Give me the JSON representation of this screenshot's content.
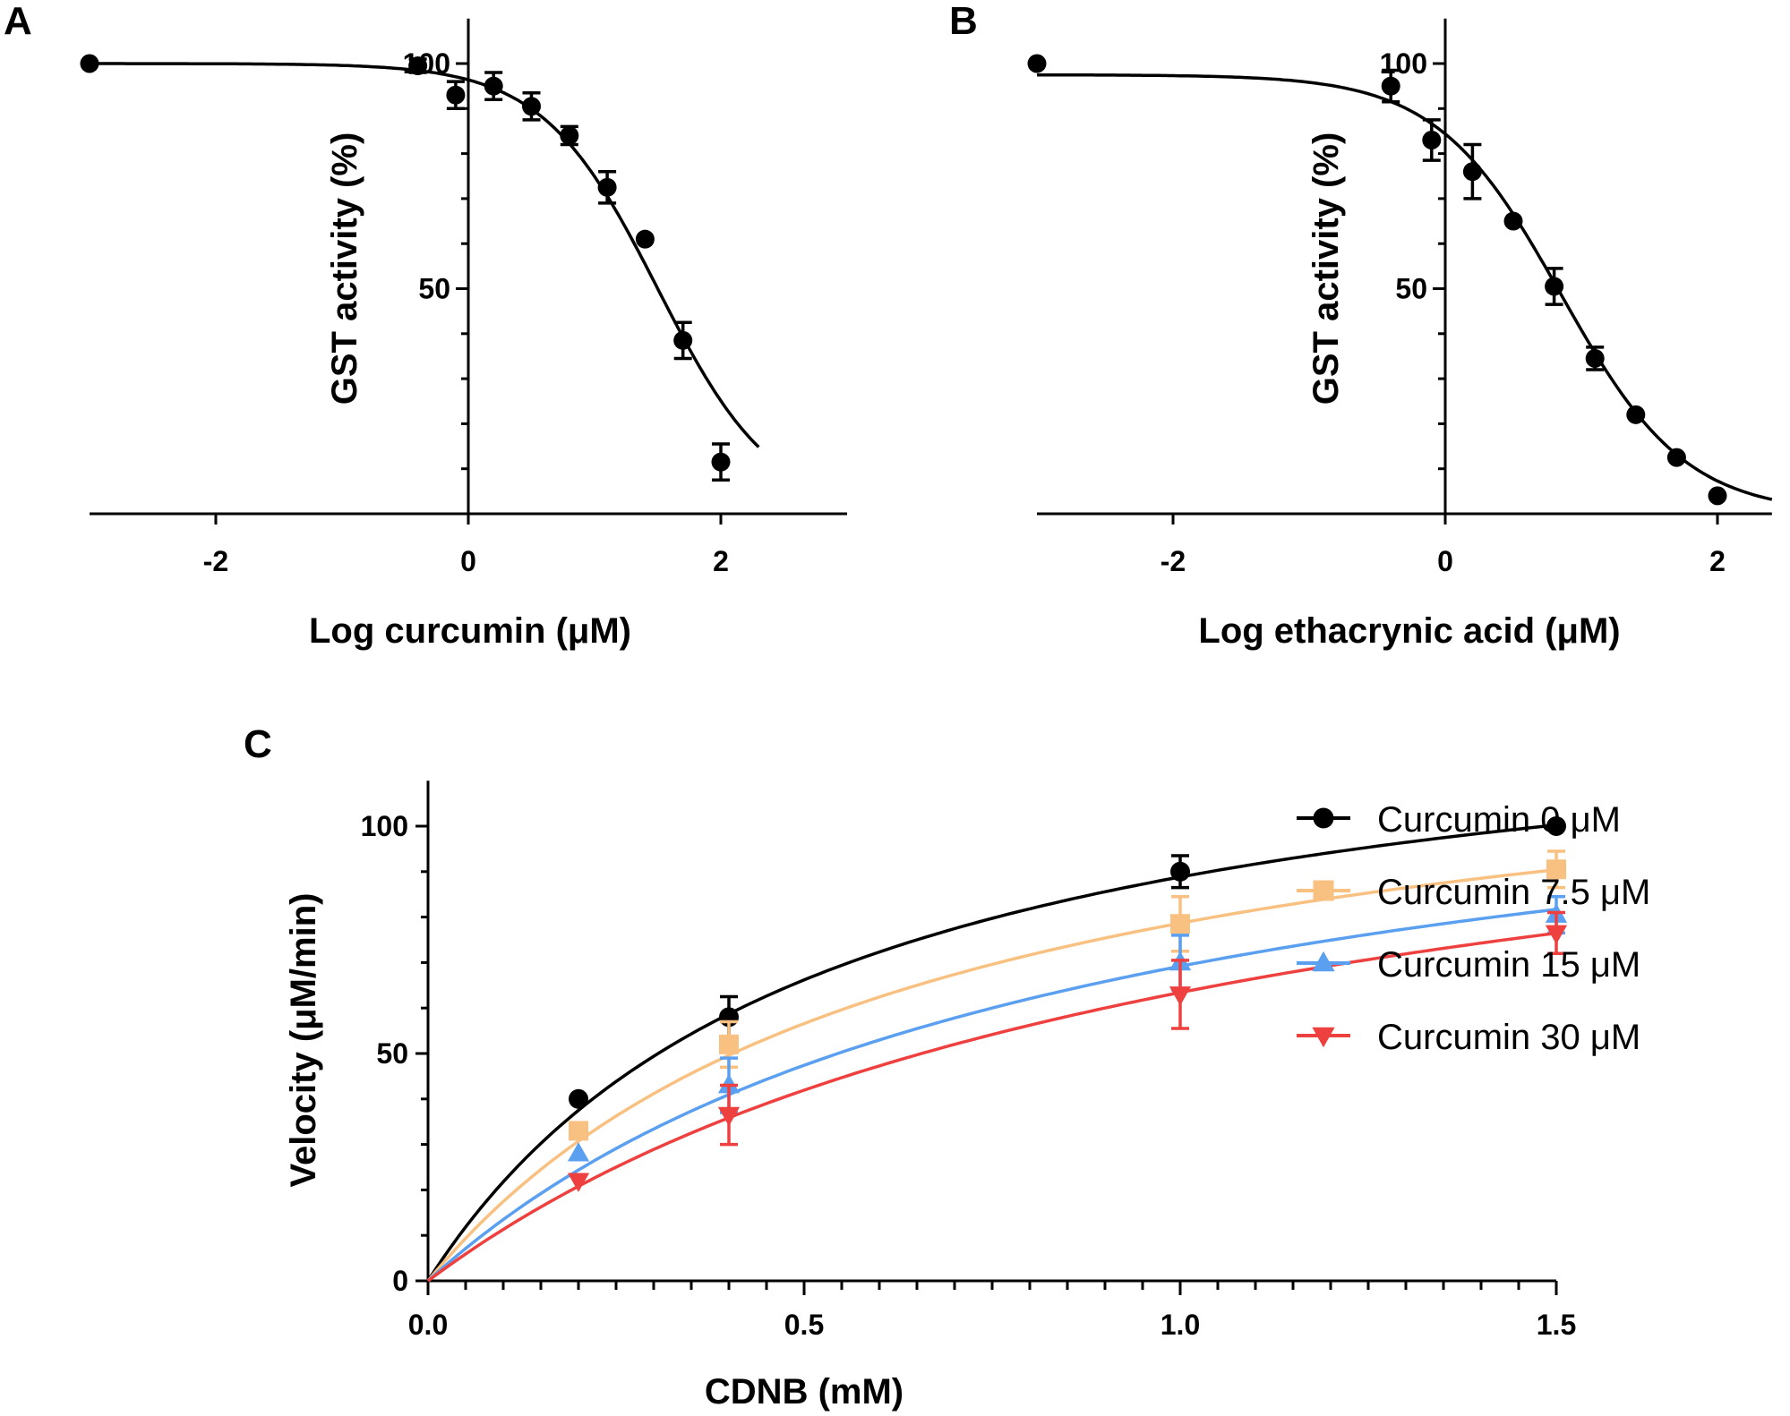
{
  "chart_data": [
    {
      "panel": "A",
      "type": "scatter",
      "xlabel": "Log curcumin (μM)",
      "ylabel": "GST activity (%)",
      "xlim": [
        -3,
        3
      ],
      "ylim": [
        0,
        110
      ],
      "x_ticks": [
        -2,
        0,
        2
      ],
      "x_tick_labels": [
        "-2",
        "0",
        "2"
      ],
      "y_ticks": [
        50,
        100
      ],
      "y_tick_labels": [
        "50",
        "100"
      ],
      "points": [
        {
          "x": -3.0,
          "y": 100,
          "err": 0
        },
        {
          "x": -0.4,
          "y": 99.5,
          "err": 1.5
        },
        {
          "x": -0.1,
          "y": 93,
          "err": 3
        },
        {
          "x": 0.2,
          "y": 95,
          "err": 3
        },
        {
          "x": 0.5,
          "y": 90.5,
          "err": 3
        },
        {
          "x": 0.8,
          "y": 84,
          "err": 2
        },
        {
          "x": 1.1,
          "y": 72.5,
          "err": 3.5
        },
        {
          "x": 1.4,
          "y": 61,
          "err": 0
        },
        {
          "x": 1.7,
          "y": 38.5,
          "err": 4
        },
        {
          "x": 2.0,
          "y": 11.5,
          "err": 4
        }
      ],
      "curve": {
        "top": 100,
        "bottom": 0,
        "log_ic50": 1.5,
        "hill": 0.95,
        "x_range": [
          -3,
          2.3
        ]
      }
    },
    {
      "panel": "B",
      "type": "scatter",
      "xlabel": "Log ethacrynic acid (μM)",
      "ylabel": "GST activity (%)",
      "xlim": [
        -3,
        2.4
      ],
      "ylim": [
        0,
        110
      ],
      "x_ticks": [
        -2,
        0,
        2
      ],
      "x_tick_labels": [
        "-2",
        "0",
        "2"
      ],
      "y_ticks": [
        50,
        100
      ],
      "y_tick_labels": [
        "50",
        "100"
      ],
      "points": [
        {
          "x": -3.0,
          "y": 100,
          "err": 0
        },
        {
          "x": -0.4,
          "y": 95,
          "err": 3.5
        },
        {
          "x": -0.1,
          "y": 83,
          "err": 4.5
        },
        {
          "x": 0.2,
          "y": 76,
          "err": 6
        },
        {
          "x": 0.5,
          "y": 65,
          "err": 0
        },
        {
          "x": 0.8,
          "y": 50.5,
          "err": 4
        },
        {
          "x": 1.1,
          "y": 34.5,
          "err": 2.5
        },
        {
          "x": 1.4,
          "y": 22,
          "err": 0
        },
        {
          "x": 1.7,
          "y": 12.5,
          "err": 0
        },
        {
          "x": 2.0,
          "y": 4,
          "err": 0
        }
      ],
      "curve": {
        "top": 97.5,
        "bottom": 0,
        "log_ic50": 0.85,
        "hill": 0.95,
        "x_range": [
          -3,
          2.4
        ]
      }
    },
    {
      "panel": "C",
      "type": "line",
      "xlabel": "CDNB (mM)",
      "ylabel": "Velocity (μM/min)",
      "xlim": [
        0,
        1.5
      ],
      "ylim": [
        0,
        110
      ],
      "x_ticks": [
        0.0,
        0.5,
        1.0,
        1.5
      ],
      "x_tick_labels": [
        "0.0",
        "0.5",
        "1.0",
        "1.5"
      ],
      "y_ticks": [
        0,
        50,
        100
      ],
      "y_tick_labels": [
        "0",
        "50",
        "100"
      ],
      "series": [
        {
          "name": "Curcumin 0 μM",
          "color": "#000000",
          "marker": "circle",
          "x": [
            0.2,
            0.4,
            1.0,
            1.5
          ],
          "y": [
            40,
            58,
            90,
            100
          ],
          "err": [
            0,
            4.5,
            3.5,
            0
          ],
          "vmax": 135,
          "km": 0.52
        },
        {
          "name": "Curcumin 7.5 μM",
          "color": "#f9c181",
          "marker": "square",
          "x": [
            0.2,
            0.4,
            1.0,
            1.5
          ],
          "y": [
            33,
            52,
            78.5,
            90.5
          ],
          "err": [
            0,
            5,
            6,
            4
          ],
          "vmax": 129,
          "km": 0.64
        },
        {
          "name": "Curcumin 15 μM",
          "color": "#5b9ff0",
          "marker": "triangle-up",
          "x": [
            0.2,
            0.4,
            1.0,
            1.5
          ],
          "y": [
            28,
            43,
            70,
            80.5
          ],
          "err": [
            0,
            6,
            6,
            4
          ],
          "vmax": 128,
          "km": 0.85
        },
        {
          "name": "Curcumin 30 μM",
          "color": "#ef4040",
          "marker": "triangle-down",
          "x": [
            0.2,
            0.4,
            1.0,
            1.5
          ],
          "y": [
            22,
            36.5,
            63,
            76.5
          ],
          "err": [
            0,
            6.5,
            7.5,
            4.5
          ],
          "vmax": 130,
          "km": 1.05
        }
      ]
    }
  ]
}
